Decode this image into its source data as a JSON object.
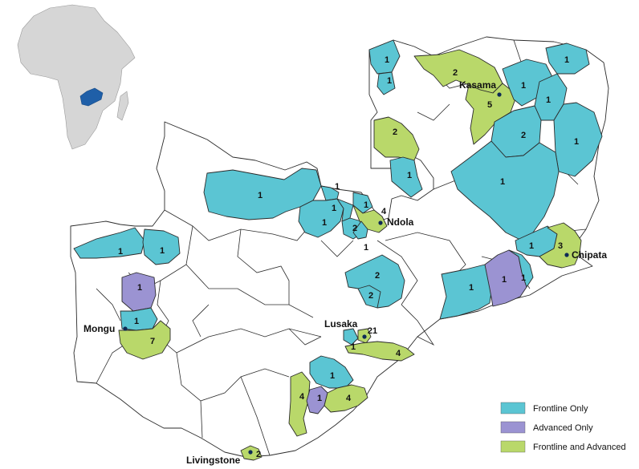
{
  "cities": [
    {
      "id": "kasama",
      "name": "Kasama"
    },
    {
      "id": "ndola",
      "name": "Ndola"
    },
    {
      "id": "chipata",
      "name": "Chipata"
    },
    {
      "id": "mongu",
      "name": "Mongu"
    },
    {
      "id": "lusaka",
      "name": "Lusaka"
    },
    {
      "id": "livingstone",
      "name": "Livingstone"
    }
  ],
  "district_counts": [
    {
      "id": "nw-chiengi",
      "count": "1",
      "category": "Frontline Only"
    },
    {
      "id": "n-lake",
      "count": "1",
      "category": "Frontline Only"
    },
    {
      "id": "n-kasama-w",
      "count": "2",
      "category": "Frontline and Advanced"
    },
    {
      "id": "n-kasama",
      "count": "5",
      "category": "Frontline and Advanced"
    },
    {
      "id": "ne-isoka",
      "count": "1",
      "category": "Frontline Only"
    },
    {
      "id": "ne-chinsali",
      "count": "1",
      "category": "Frontline Only"
    },
    {
      "id": "ne-nakonde",
      "count": "1",
      "category": "Frontline Only"
    },
    {
      "id": "ne-mpika",
      "count": "2",
      "category": "Frontline Only"
    },
    {
      "id": "ne-chama",
      "count": "1",
      "category": "Frontline Only"
    },
    {
      "id": "lp-mansa",
      "count": "2",
      "category": "Frontline and Advanced"
    },
    {
      "id": "lp-samfya",
      "count": "1",
      "category": "Frontline Only"
    },
    {
      "id": "e-mpika",
      "count": "1",
      "category": "Frontline Only"
    },
    {
      "id": "nw-solwezi",
      "count": "1",
      "category": "Frontline Only"
    },
    {
      "id": "cb-chililabombwe",
      "count": "1",
      "category": "Frontline Only"
    },
    {
      "id": "cb-mufulira",
      "count": "1",
      "category": "Frontline Only"
    },
    {
      "id": "cb-chingola",
      "count": "1",
      "category": "Frontline Only"
    },
    {
      "id": "cb-kalulushi",
      "count": "1",
      "category": "Frontline Only"
    },
    {
      "id": "cb-kitwe",
      "count": "2",
      "category": "Frontline Only"
    },
    {
      "id": "cb-ndola",
      "count": "4",
      "category": "Frontline and Advanced"
    },
    {
      "id": "cb-luanshya",
      "count": "1",
      "category": "Frontline Only"
    },
    {
      "id": "ep-lundazi",
      "count": "1",
      "category": "Frontline Only"
    },
    {
      "id": "ep-chipata",
      "count": "3",
      "category": "Frontline and Advanced"
    },
    {
      "id": "ep-petauke",
      "count": "1",
      "category": "Frontline Only"
    },
    {
      "id": "ep-katete",
      "count": "1",
      "category": "Advanced Only"
    },
    {
      "id": "ep-sinda",
      "count": "1",
      "category": "Frontline Only"
    },
    {
      "id": "wp-kalabo",
      "count": "1",
      "category": "Frontline Only"
    },
    {
      "id": "wp-lukulu",
      "count": "1",
      "category": "Frontline Only"
    },
    {
      "id": "wp-kaoma",
      "count": "1",
      "category": "Advanced Only"
    },
    {
      "id": "wp-mongu",
      "count": "1",
      "category": "Frontline Only"
    },
    {
      "id": "wp-senanga",
      "count": "7",
      "category": "Frontline and Advanced"
    },
    {
      "id": "cp-kabwe",
      "count": "2",
      "category": "Frontline Only"
    },
    {
      "id": "cp-kapiri",
      "count": "2",
      "category": "Frontline Only"
    },
    {
      "id": "lsk-chongwe",
      "count": "1",
      "category": "Frontline Only"
    },
    {
      "id": "lsk-lusaka",
      "count": "21",
      "category": "Frontline and Advanced"
    },
    {
      "id": "lsk-kafue",
      "count": "4",
      "category": "Frontline and Advanced"
    },
    {
      "id": "sp-monze",
      "count": "1",
      "category": "Frontline Only"
    },
    {
      "id": "sp-choma-w",
      "count": "4",
      "category": "Frontline and Advanced"
    },
    {
      "id": "sp-choma",
      "count": "1",
      "category": "Advanced Only"
    },
    {
      "id": "sp-sinazongwe",
      "count": "4",
      "category": "Frontline and Advanced"
    },
    {
      "id": "sp-livingstone",
      "count": "2",
      "category": "Frontline and Advanced"
    }
  ],
  "legend": {
    "items": [
      {
        "label": "Frontline Only",
        "color": "#5bc5d3"
      },
      {
        "label": "Advanced Only",
        "color": "#9b93d2"
      },
      {
        "label": "Frontline and Advanced",
        "color": "#b9d86a"
      }
    ]
  },
  "inset": {
    "continent_color": "#d6d6d6",
    "highlight_color": "#1f5fa8"
  }
}
